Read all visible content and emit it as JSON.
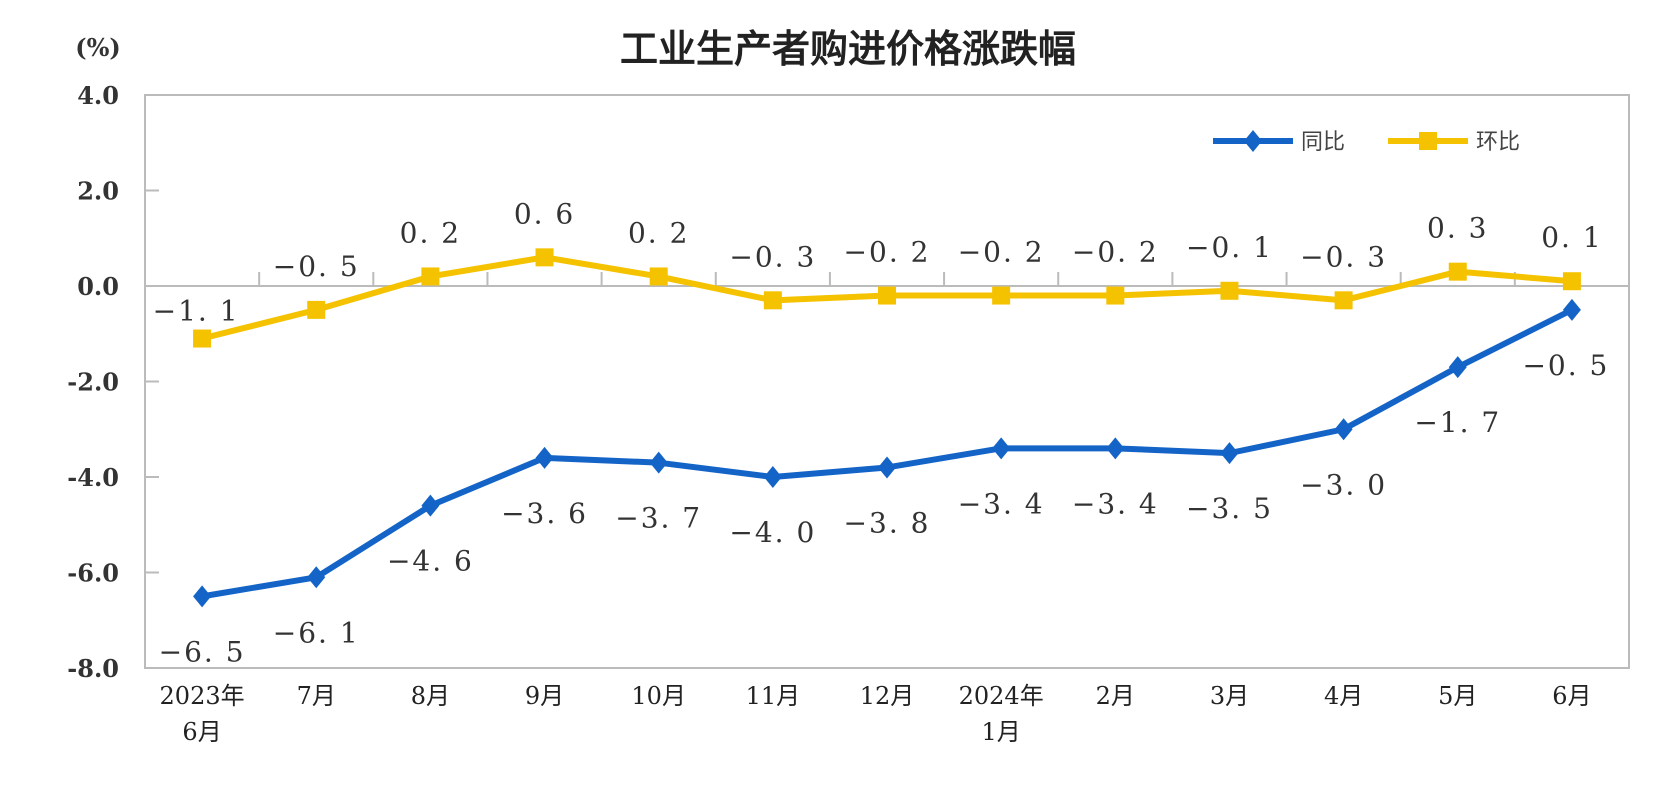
{
  "chart_data": {
    "type": "line",
    "title": "工业生产者购进价格涨跌幅",
    "ylabel": "(%)",
    "ylim": [
      -8.0,
      4.0
    ],
    "yticks": [
      "4.0",
      "2.0",
      "0.0",
      "-2.0",
      "-4.0",
      "-6.0",
      "-8.0"
    ],
    "ytick_values": [
      4,
      2,
      0,
      -2,
      -4,
      -6,
      -8
    ],
    "categories": [
      [
        "2023年",
        "6月"
      ],
      [
        "7月"
      ],
      [
        "8月"
      ],
      [
        "9月"
      ],
      [
        "10月"
      ],
      [
        "11月"
      ],
      [
        "12月"
      ],
      [
        "2024年",
        "1月"
      ],
      [
        "2月"
      ],
      [
        "3月"
      ],
      [
        "4月"
      ],
      [
        "5月"
      ],
      [
        "6月"
      ]
    ],
    "grid": false,
    "legend_placement": "top-right",
    "series": [
      {
        "name": "同比",
        "color": "#1464c8",
        "marker": "diamond",
        "values": [
          -6.5,
          -6.1,
          -4.6,
          -3.6,
          -3.7,
          -4.0,
          -3.8,
          -3.4,
          -3.4,
          -3.5,
          -3.0,
          -1.7,
          -0.5
        ]
      },
      {
        "name": "环比",
        "color": "#f5c200",
        "marker": "square",
        "values": [
          -1.1,
          -0.5,
          0.2,
          0.6,
          0.2,
          -0.3,
          -0.2,
          -0.2,
          -0.2,
          -0.1,
          -0.3,
          0.3,
          0.1
        ]
      }
    ]
  }
}
